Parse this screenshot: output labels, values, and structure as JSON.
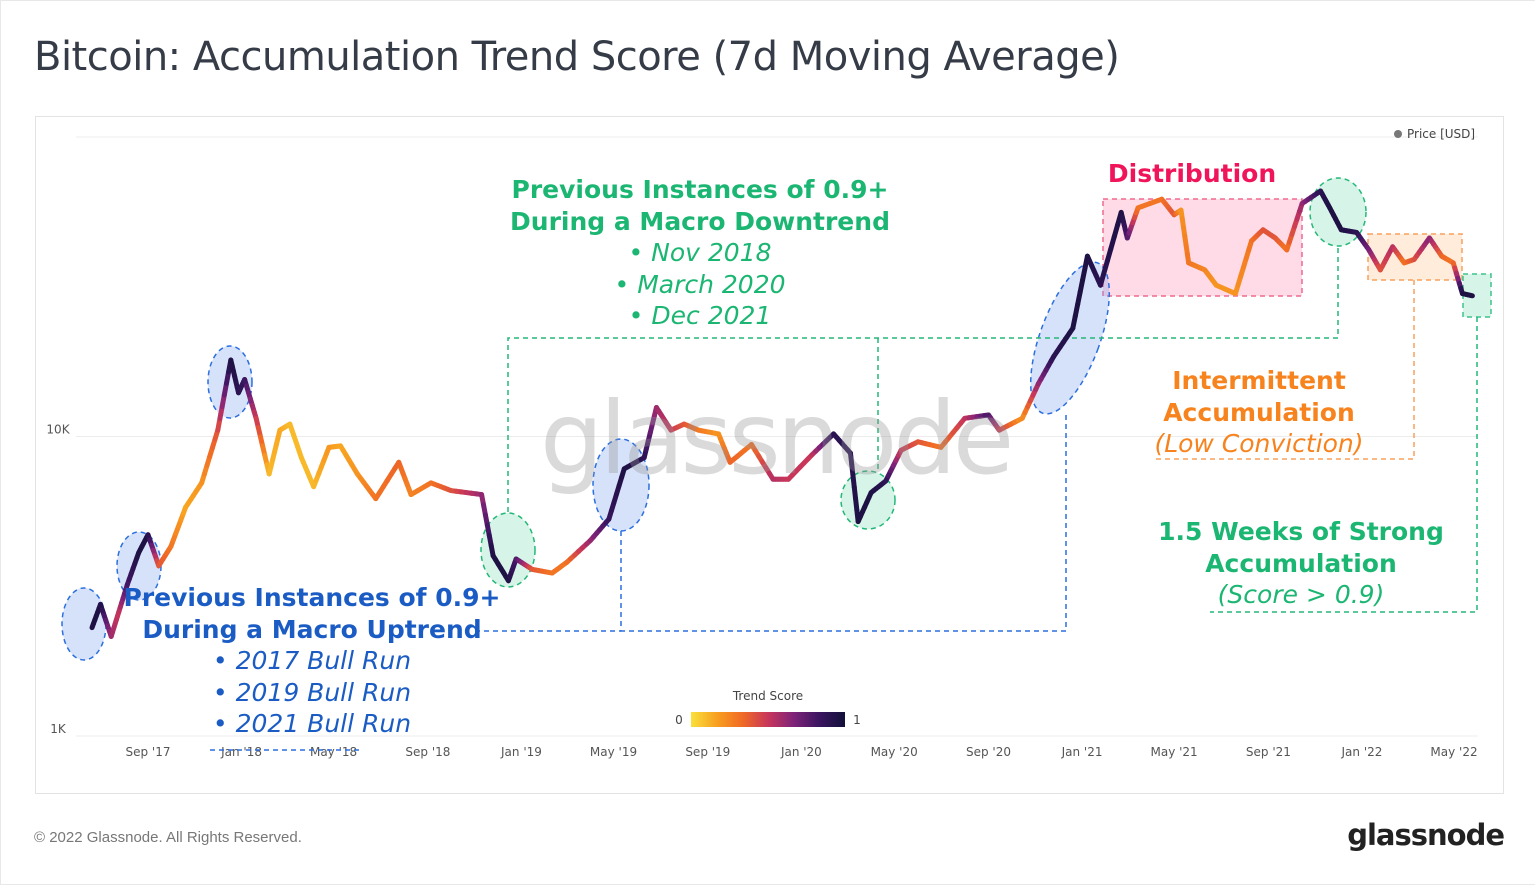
{
  "title": "Bitcoin: Accumulation Trend Score (7d Moving Average)",
  "footer": "© 2022 Glassnode. All Rights Reserved.",
  "logo": "glassnode",
  "watermark": "glassnode",
  "annotations": {
    "downtrend": {
      "line1": "Previous Instances of 0.9+",
      "line2": "During a Macro Downtrend",
      "bullets": [
        "Nov 2018",
        "March 2020",
        "Dec 2021"
      ],
      "color": "#1cb673"
    },
    "uptrend": {
      "line1": "Previous Instances of 0.9+",
      "line2": "During a Macro Uptrend",
      "bullets": [
        "2017 Bull Run",
        "2019 Bull Run",
        "2021 Bull Run"
      ],
      "color": "#1a5cc4"
    },
    "distribution": {
      "label": "Distribution",
      "color": "#f0145a"
    },
    "intermittent": {
      "line1": "Intermittent",
      "line2": "Accumulation",
      "line3": "(Low Conviction)",
      "color": "#f7831e"
    },
    "strong": {
      "line1": "1.5 Weeks of Strong",
      "line2": "Accumulation",
      "line3": "(Score > 0.9)",
      "color": "#1cb673"
    }
  },
  "chart_data": {
    "type": "line",
    "title": "Bitcoin: Accumulation Trend Score (7d Moving Average)",
    "y_scale": "log",
    "ylim": [
      1000,
      100000
    ],
    "y_ticks": [
      {
        "value": 1000,
        "label": "1K"
      },
      {
        "value": 10000,
        "label": "10K"
      }
    ],
    "x_ticks": [
      {
        "date": "2017-09-01",
        "label": "Sep '17"
      },
      {
        "date": "2018-01-01",
        "label": "Jan '18"
      },
      {
        "date": "2018-05-01",
        "label": "May '18"
      },
      {
        "date": "2018-09-01",
        "label": "Sep '18"
      },
      {
        "date": "2019-01-01",
        "label": "Jan '19"
      },
      {
        "date": "2019-05-01",
        "label": "May '19"
      },
      {
        "date": "2019-09-01",
        "label": "Sep '19"
      },
      {
        "date": "2020-01-01",
        "label": "Jan '20"
      },
      {
        "date": "2020-05-01",
        "label": "May '20"
      },
      {
        "date": "2020-09-01",
        "label": "Sep '20"
      },
      {
        "date": "2021-01-01",
        "label": "Jan '21"
      },
      {
        "date": "2021-05-01",
        "label": "May '21"
      },
      {
        "date": "2021-09-01",
        "label": "Sep '21"
      },
      {
        "date": "2022-01-01",
        "label": "Jan '22"
      },
      {
        "date": "2022-05-01",
        "label": "May '22"
      }
    ],
    "legend": {
      "label": "Price [USD]",
      "position": "top-right",
      "color": "#777777"
    },
    "colorbar": {
      "label": "Trend Score",
      "min_label": "0",
      "max_label": "1",
      "colors": [
        "#f9e03c",
        "#f8a020",
        "#f06a25",
        "#c8365a",
        "#7e2379",
        "#3a1560",
        "#12103a"
      ]
    },
    "grid": true,
    "series": [
      {
        "name": "Price [USD]",
        "color_by": "Trend Score",
        "points": [
          [
            "2017-06-20",
            2300,
            0.95
          ],
          [
            "2017-07-01",
            2750,
            0.95
          ],
          [
            "2017-07-15",
            2150,
            0.6
          ],
          [
            "2017-07-25",
            2600,
            0.5
          ],
          [
            "2017-08-05",
            3200,
            0.8
          ],
          [
            "2017-08-20",
            4100,
            0.95
          ],
          [
            "2017-09-01",
            4700,
            0.95
          ],
          [
            "2017-09-15",
            3700,
            0.4
          ],
          [
            "2017-10-01",
            4300,
            0.3
          ],
          [
            "2017-10-20",
            5800,
            0.15
          ],
          [
            "2017-11-10",
            7000,
            0.2
          ],
          [
            "2017-12-01",
            10500,
            0.4
          ],
          [
            "2017-12-18",
            18000,
            0.95
          ],
          [
            "2017-12-28",
            14000,
            0.9
          ],
          [
            "2018-01-05",
            15500,
            0.85
          ],
          [
            "2018-01-20",
            11500,
            0.5
          ],
          [
            "2018-02-06",
            7500,
            0.1
          ],
          [
            "2018-02-20",
            10500,
            0.15
          ],
          [
            "2018-03-05",
            11000,
            0.1
          ],
          [
            "2018-03-20",
            8500,
            0.1
          ],
          [
            "2018-04-05",
            6800,
            0.1
          ],
          [
            "2018-04-25",
            9200,
            0.2
          ],
          [
            "2018-05-10",
            9300,
            0.15
          ],
          [
            "2018-06-01",
            7500,
            0.2
          ],
          [
            "2018-06-25",
            6200,
            0.3
          ],
          [
            "2018-07-25",
            8200,
            0.35
          ],
          [
            "2018-08-10",
            6400,
            0.25
          ],
          [
            "2018-09-05",
            7000,
            0.3
          ],
          [
            "2018-10-01",
            6600,
            0.4
          ],
          [
            "2018-11-10",
            6400,
            0.6
          ],
          [
            "2018-11-25",
            4000,
            0.95
          ],
          [
            "2018-12-15",
            3300,
            0.95
          ],
          [
            "2018-12-25",
            3900,
            0.8
          ],
          [
            "2019-01-15",
            3600,
            0.4
          ],
          [
            "2019-02-10",
            3500,
            0.3
          ],
          [
            "2019-03-01",
            3800,
            0.3
          ],
          [
            "2019-04-01",
            4500,
            0.6
          ],
          [
            "2019-04-25",
            5300,
            0.85
          ],
          [
            "2019-05-15",
            7800,
            0.95
          ],
          [
            "2019-06-10",
            8500,
            0.9
          ],
          [
            "2019-06-26",
            12500,
            0.6
          ],
          [
            "2019-07-15",
            10500,
            0.5
          ],
          [
            "2019-08-01",
            11000,
            0.4
          ],
          [
            "2019-08-20",
            10500,
            0.3
          ],
          [
            "2019-09-15",
            10200,
            0.2
          ],
          [
            "2019-09-30",
            8200,
            0.35
          ],
          [
            "2019-10-28",
            9400,
            0.3
          ],
          [
            "2019-11-25",
            7200,
            0.55
          ],
          [
            "2019-12-15",
            7200,
            0.5
          ],
          [
            "2020-01-15",
            8700,
            0.5
          ],
          [
            "2020-02-12",
            10200,
            0.9
          ],
          [
            "2020-03-05",
            8800,
            0.9
          ],
          [
            "2020-03-15",
            5200,
            0.95
          ],
          [
            "2020-04-01",
            6500,
            0.95
          ],
          [
            "2020-04-20",
            7100,
            0.9
          ],
          [
            "2020-05-10",
            9000,
            0.5
          ],
          [
            "2020-06-01",
            9600,
            0.4
          ],
          [
            "2020-07-01",
            9200,
            0.3
          ],
          [
            "2020-08-01",
            11500,
            0.5
          ],
          [
            "2020-09-01",
            11800,
            0.8
          ],
          [
            "2020-09-15",
            10500,
            0.5
          ],
          [
            "2020-10-15",
            11500,
            0.2
          ],
          [
            "2020-11-05",
            15000,
            0.6
          ],
          [
            "2020-11-25",
            18500,
            0.9
          ],
          [
            "2020-12-20",
            23000,
            0.95
          ],
          [
            "2021-01-08",
            40000,
            0.95
          ],
          [
            "2021-01-25",
            32000,
            0.9
          ],
          [
            "2021-02-21",
            56000,
            0.95
          ],
          [
            "2021-03-01",
            46000,
            0.8
          ],
          [
            "2021-03-15",
            58000,
            0.3
          ],
          [
            "2021-04-15",
            62000,
            0.3
          ],
          [
            "2021-05-01",
            55000,
            0.4
          ],
          [
            "2021-05-10",
            57000,
            0.2
          ],
          [
            "2021-05-20",
            38000,
            0.3
          ],
          [
            "2021-06-10",
            36000,
            0.25
          ],
          [
            "2021-06-25",
            32000,
            0.2
          ],
          [
            "2021-07-20",
            30000,
            0.2
          ],
          [
            "2021-08-10",
            45000,
            0.3
          ],
          [
            "2021-08-25",
            49000,
            0.4
          ],
          [
            "2021-09-10",
            46000,
            0.4
          ],
          [
            "2021-09-25",
            42000,
            0.3
          ],
          [
            "2021-10-15",
            60000,
            0.6
          ],
          [
            "2021-11-08",
            66000,
            0.9
          ],
          [
            "2021-11-20",
            58000,
            0.95
          ],
          [
            "2021-12-05",
            49000,
            0.95
          ],
          [
            "2021-12-25",
            48000,
            0.9
          ],
          [
            "2022-01-10",
            42000,
            0.7
          ],
          [
            "2022-01-25",
            36000,
            0.4
          ],
          [
            "2022-02-10",
            43000,
            0.55
          ],
          [
            "2022-02-25",
            38000,
            0.3
          ],
          [
            "2022-03-10",
            39000,
            0.4
          ],
          [
            "2022-03-30",
            46000,
            0.65
          ],
          [
            "2022-04-15",
            40000,
            0.35
          ],
          [
            "2022-04-30",
            38000,
            0.3
          ],
          [
            "2022-05-12",
            30000,
            0.95
          ],
          [
            "2022-05-25",
            29500,
            0.95
          ]
        ]
      }
    ]
  }
}
